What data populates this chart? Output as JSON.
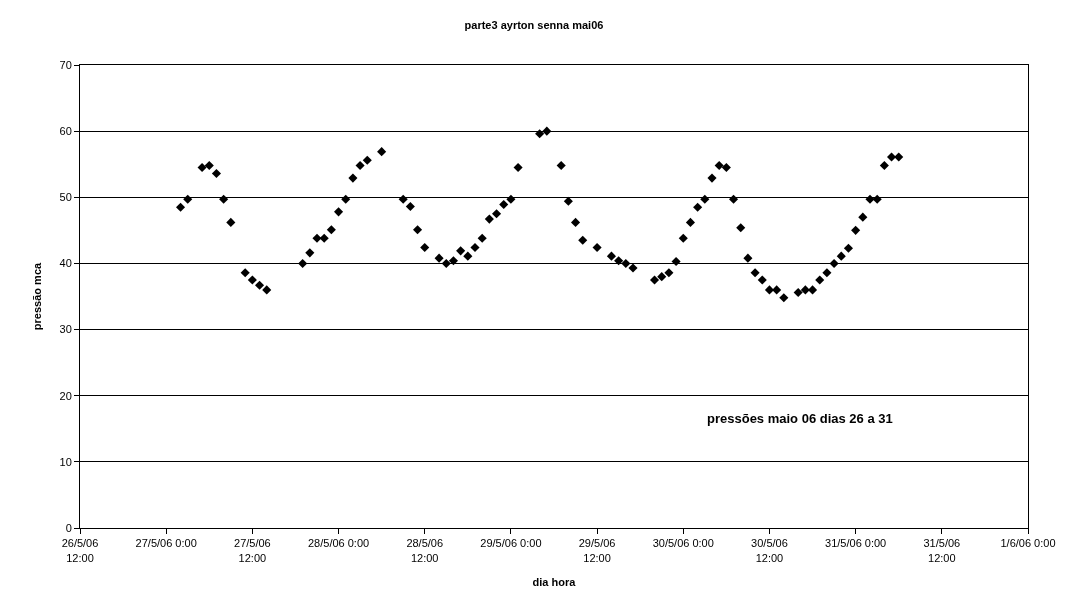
{
  "chart_data": {
    "type": "scatter",
    "title": "parte3 ayrton senna mai06",
    "xlabel": "dia hora",
    "ylabel": "pressão mca",
    "annotations": [
      "pressões maio 06 dias 26 a 31"
    ],
    "x": [
      "--05-27T02:00",
      "--05-27T03:00",
      "--05-27T05:00",
      "--05-27T06:00",
      "--05-27T07:00",
      "--05-27T08:00",
      "--05-27T09:00",
      "--05-27T11:00",
      "--05-27T12:00",
      "--05-27T13:00",
      "--05-27T14:00",
      "--05-27T19:00",
      "--05-27T20:00",
      "--05-27T21:00",
      "--05-27T22:00",
      "--05-27T23:00",
      "--05-28T00:00",
      "--05-28T01:00",
      "--05-28T02:00",
      "--05-28T03:00",
      "--05-28T04:00",
      "--05-28T06:00",
      "--05-28T09:00",
      "--05-28T10:00",
      "--05-28T11:00",
      "--05-28T12:00",
      "--05-28T14:00",
      "--05-28T15:00",
      "--05-28T16:00",
      "--05-28T17:00",
      "--05-28T18:00",
      "--05-28T19:00",
      "--05-28T20:00",
      "--05-28T21:00",
      "--05-28T22:00",
      "--05-28T23:00",
      "--05-29T00:00",
      "--05-29T01:00",
      "--05-29T04:00",
      "--05-29T05:00",
      "--05-29T07:00",
      "--05-29T08:00",
      "--05-29T09:00",
      "--05-29T10:00",
      "--05-29T12:00",
      "--05-29T14:00",
      "--05-29T15:00",
      "--05-29T16:00",
      "--05-29T17:00",
      "--05-29T20:00",
      "--05-29T21:00",
      "--05-29T22:00",
      "--05-29T23:00",
      "--05-30T00:00",
      "--05-30T01:00",
      "--05-30T02:00",
      "--05-30T03:00",
      "--05-30T04:00",
      "--05-30T05:00",
      "--05-30T06:00",
      "--05-30T07:00",
      "--05-30T08:00",
      "--05-30T09:00",
      "--05-30T10:00",
      "--05-30T11:00",
      "--05-30T12:00",
      "--05-30T13:00",
      "--05-30T14:00",
      "--05-30T16:00",
      "--05-30T17:00",
      "--05-30T18:00",
      "--05-30T19:00",
      "--05-30T20:00",
      "--05-30T21:00",
      "--05-30T22:00",
      "--05-30T23:00",
      "--05-31T00:00",
      "--05-31T01:00",
      "--05-31T02:00",
      "--05-31T03:00",
      "--05-31T04:00",
      "--05-31T05:00",
      "--05-31T06:00"
    ],
    "series": [
      {
        "color": "#000000",
        "values": [
          48.5,
          49.7,
          54.5,
          54.8,
          53.6,
          49.7,
          46.2,
          38.6,
          37.5,
          36.7,
          36.0,
          40.0,
          41.6,
          43.8,
          43.8,
          45.1,
          47.8,
          49.7,
          52.9,
          54.8,
          55.6,
          56.9,
          49.7,
          48.6,
          45.1,
          42.4,
          40.8,
          40.0,
          40.4,
          41.9,
          41.1,
          42.4,
          43.8,
          46.7,
          47.5,
          48.9,
          49.7,
          54.5,
          59.6,
          60.0,
          54.8,
          49.4,
          46.2,
          43.5,
          42.4,
          41.1,
          40.4,
          40.0,
          39.3,
          37.5,
          38.0,
          38.6,
          40.3,
          43.8,
          46.2,
          48.5,
          49.7,
          52.9,
          54.8,
          54.5,
          49.7,
          45.4,
          40.8,
          38.6,
          37.5,
          36.0,
          36.0,
          34.8,
          35.6,
          36.0,
          36.0,
          37.5,
          38.6,
          40.0,
          41.1,
          42.3,
          45.0,
          47.0,
          49.7,
          49.7,
          54.8,
          56.1,
          56.1
        ]
      }
    ],
    "xlim": [
      "--05-26T12:00",
      "--06-01T00:00"
    ],
    "xticks": [
      {
        "value": "--05-26T12:00",
        "label": "26/5/06\n12:00"
      },
      {
        "value": "--05-27T00:00",
        "label": "27/5/06 0:00"
      },
      {
        "value": "--05-27T12:00",
        "label": "27/5/06\n12:00"
      },
      {
        "value": "--05-28T00:00",
        "label": "28/5/06 0:00"
      },
      {
        "value": "--05-28T12:00",
        "label": "28/5/06\n12:00"
      },
      {
        "value": "--05-29T00:00",
        "label": "29/5/06 0:00"
      },
      {
        "value": "--05-29T12:00",
        "label": "29/5/06\n12:00"
      },
      {
        "value": "--05-30T00:00",
        "label": "30/5/06 0:00"
      },
      {
        "value": "--05-30T12:00",
        "label": "30/5/06\n12:00"
      },
      {
        "value": "--05-31T00:00",
        "label": "31/5/06 0:00"
      },
      {
        "value": "--05-31T12:00",
        "label": "31/5/06\n12:00"
      },
      {
        "value": "--06-01T00:00",
        "label": "1/6/06 0:00"
      }
    ],
    "ylim": [
      0,
      70
    ],
    "yticks": [
      0,
      10,
      20,
      30,
      40,
      50,
      60,
      70
    ],
    "grid": "y",
    "marker": "diamond"
  }
}
